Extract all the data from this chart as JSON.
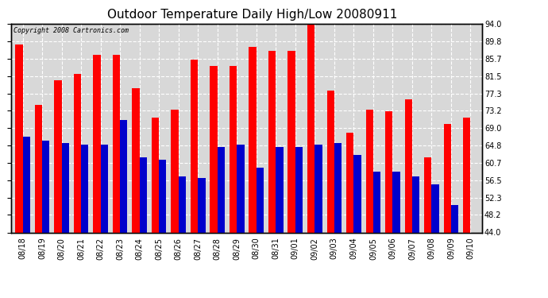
{
  "title": "Outdoor Temperature Daily High/Low 20080911",
  "copyright_text": "Copyright 2008 Cartronics.com",
  "dates": [
    "08/18",
    "08/19",
    "08/20",
    "08/21",
    "08/22",
    "08/23",
    "08/24",
    "08/25",
    "08/26",
    "08/27",
    "08/28",
    "08/29",
    "08/30",
    "08/31",
    "09/01",
    "09/02",
    "09/03",
    "09/04",
    "09/05",
    "09/06",
    "09/07",
    "09/08",
    "09/09",
    "09/10"
  ],
  "highs": [
    89.0,
    74.5,
    80.5,
    82.0,
    86.5,
    86.5,
    78.5,
    71.5,
    73.5,
    85.5,
    84.0,
    84.0,
    88.5,
    87.5,
    87.5,
    94.0,
    78.0,
    68.0,
    73.5,
    73.0,
    76.0,
    62.0,
    70.0,
    71.5
  ],
  "lows": [
    67.0,
    66.0,
    65.5,
    65.0,
    65.0,
    71.0,
    62.0,
    61.5,
    57.5,
    57.0,
    64.5,
    65.0,
    59.5,
    64.5,
    64.5,
    65.0,
    65.5,
    62.5,
    58.5,
    58.5,
    57.5,
    55.5,
    50.5,
    44.0
  ],
  "yticks": [
    44.0,
    48.2,
    52.3,
    56.5,
    60.7,
    64.8,
    69.0,
    73.2,
    77.3,
    81.5,
    85.7,
    89.8,
    94.0
  ],
  "ymin": 44.0,
  "ymax": 94.0,
  "bar_color_high": "#ff0000",
  "bar_color_low": "#0000cc",
  "bg_color": "#ffffff",
  "plot_bg_color": "#d8d8d8",
  "grid_color": "#ffffff",
  "title_fontsize": 11,
  "copyright_fontsize": 6,
  "tick_fontsize": 7
}
